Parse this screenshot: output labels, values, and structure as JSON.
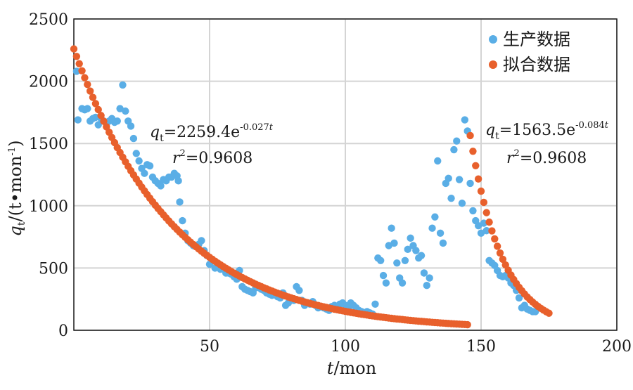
{
  "chart_data": {
    "type": "scatter",
    "xlabel_var": "t",
    "xlabel_unit": "/mon",
    "ylabel_var": "q",
    "ylabel_sub": "t",
    "ylabel_unit_pre": "/(t•mon",
    "ylabel_unit_sup": "-1",
    "ylabel_unit_post": ")",
    "xlim": [
      0,
      200
    ],
    "ylim": [
      0,
      2500
    ],
    "x_ticks": [
      50,
      100,
      150,
      200
    ],
    "y_ticks": [
      0,
      500,
      1000,
      1500,
      2000,
      2500
    ],
    "grid": true,
    "legend_position": "top-right",
    "colors": {
      "production": "#5aaee6",
      "fitted": "#e8602c",
      "grid": "#d4d4d4"
    },
    "series": [
      {
        "name": "生产数据",
        "points": [
          [
            1,
            2080
          ],
          [
            1.5,
            1690
          ],
          [
            3,
            1780
          ],
          [
            4,
            1770
          ],
          [
            5,
            1780
          ],
          [
            6,
            1680
          ],
          [
            7,
            1700
          ],
          [
            8,
            1710
          ],
          [
            9,
            1650
          ],
          [
            10,
            1700
          ],
          [
            11,
            1680
          ],
          [
            12,
            1660
          ],
          [
            13,
            1680
          ],
          [
            14,
            1700
          ],
          [
            15,
            1670
          ],
          [
            16,
            1680
          ],
          [
            17,
            1780
          ],
          [
            18,
            1970
          ],
          [
            19,
            1760
          ],
          [
            20,
            1680
          ],
          [
            21,
            1640
          ],
          [
            22,
            1540
          ],
          [
            23,
            1420
          ],
          [
            24,
            1360
          ],
          [
            25,
            1300
          ],
          [
            26,
            1260
          ],
          [
            27,
            1330
          ],
          [
            28,
            1320
          ],
          [
            29,
            1230
          ],
          [
            30,
            1200
          ],
          [
            31,
            1180
          ],
          [
            32,
            1160
          ],
          [
            33,
            1210
          ],
          [
            34,
            1200
          ],
          [
            35,
            1230
          ],
          [
            36,
            1230
          ],
          [
            37,
            1260
          ],
          [
            38,
            1240
          ],
          [
            38.5,
            1200
          ],
          [
            39,
            1030
          ],
          [
            40,
            880
          ],
          [
            41,
            780
          ],
          [
            42,
            720
          ],
          [
            43,
            700
          ],
          [
            44,
            680
          ],
          [
            45,
            680
          ],
          [
            46,
            690
          ],
          [
            47,
            720
          ],
          [
            48,
            640
          ],
          [
            49,
            600
          ],
          [
            50,
            530
          ],
          [
            51,
            560
          ],
          [
            52,
            500
          ],
          [
            53,
            520
          ],
          [
            54,
            490
          ],
          [
            55,
            510
          ],
          [
            56,
            460
          ],
          [
            57,
            460
          ],
          [
            58,
            450
          ],
          [
            59,
            430
          ],
          [
            60,
            410
          ],
          [
            61,
            480
          ],
          [
            62,
            350
          ],
          [
            63,
            330
          ],
          [
            64,
            320
          ],
          [
            65,
            310
          ],
          [
            66,
            300
          ],
          [
            67,
            340
          ],
          [
            68,
            360
          ],
          [
            69,
            330
          ],
          [
            70,
            320
          ],
          [
            71,
            300
          ],
          [
            72,
            290
          ],
          [
            73,
            280
          ],
          [
            74,
            300
          ],
          [
            75,
            270
          ],
          [
            76,
            260
          ],
          [
            77,
            300
          ],
          [
            78,
            200
          ],
          [
            79,
            220
          ],
          [
            80,
            250
          ],
          [
            81,
            240
          ],
          [
            82,
            350
          ],
          [
            83,
            320
          ],
          [
            84,
            240
          ],
          [
            85,
            200
          ],
          [
            86,
            220
          ],
          [
            87,
            210
          ],
          [
            88,
            230
          ],
          [
            89,
            200
          ],
          [
            90,
            180
          ],
          [
            91,
            190
          ],
          [
            92,
            180
          ],
          [
            93,
            170
          ],
          [
            94,
            160
          ],
          [
            95,
            190
          ],
          [
            96,
            200
          ],
          [
            97,
            180
          ],
          [
            98,
            210
          ],
          [
            99,
            220
          ],
          [
            100,
            200
          ],
          [
            101,
            180
          ],
          [
            102,
            220
          ],
          [
            103,
            200
          ],
          [
            104,
            180
          ],
          [
            105,
            160
          ],
          [
            106,
            150
          ],
          [
            107,
            140
          ],
          [
            108,
            150
          ],
          [
            109,
            140
          ],
          [
            110,
            130
          ],
          [
            111,
            210
          ],
          [
            112,
            580
          ],
          [
            113,
            560
          ],
          [
            114,
            440
          ],
          [
            115,
            380
          ],
          [
            116,
            680
          ],
          [
            117,
            820
          ],
          [
            118,
            700
          ],
          [
            119,
            540
          ],
          [
            120,
            420
          ],
          [
            121,
            380
          ],
          [
            122,
            560
          ],
          [
            123,
            650
          ],
          [
            124,
            740
          ],
          [
            125,
            680
          ],
          [
            126,
            640
          ],
          [
            127,
            580
          ],
          [
            128,
            600
          ],
          [
            129,
            460
          ],
          [
            130,
            360
          ],
          [
            131,
            420
          ],
          [
            132,
            820
          ],
          [
            133,
            910
          ],
          [
            134,
            1360
          ],
          [
            135,
            780
          ],
          [
            136,
            700
          ],
          [
            137,
            1180
          ],
          [
            138,
            1220
          ],
          [
            139,
            1060
          ],
          [
            140,
            1450
          ],
          [
            141,
            1520
          ],
          [
            142,
            1210
          ],
          [
            143,
            1020
          ],
          [
            144,
            1690
          ],
          [
            145,
            1600
          ],
          [
            146,
            1180
          ],
          [
            147,
            960
          ],
          [
            148,
            880
          ],
          [
            149,
            840
          ],
          [
            150,
            780
          ],
          [
            151,
            860
          ],
          [
            152,
            800
          ],
          [
            153,
            560
          ],
          [
            154,
            540
          ],
          [
            155,
            520
          ],
          [
            156,
            480
          ],
          [
            157,
            440
          ],
          [
            158,
            430
          ],
          [
            159,
            440
          ],
          [
            160,
            420
          ],
          [
            161,
            380
          ],
          [
            162,
            360
          ],
          [
            163,
            320
          ],
          [
            164,
            260
          ],
          [
            165,
            180
          ],
          [
            166,
            200
          ],
          [
            167,
            170
          ],
          [
            168,
            160
          ],
          [
            169,
            150
          ],
          [
            170,
            150
          ]
        ]
      },
      {
        "name": "拟合数据",
        "segments": [
          {
            "a": 2259.4,
            "b": 0.027,
            "t_start": 0,
            "t_end": 145,
            "t0": 0,
            "step": 1
          },
          {
            "a": 1563.5,
            "b": 0.084,
            "t_start": 146,
            "t_end": 175,
            "t0": 146,
            "step": 1
          }
        ]
      }
    ],
    "annotations": [
      {
        "q": "q",
        "sub": "t",
        "eq_pre": "=2259.4e",
        "exp": "-0.027",
        "exp_var": "t",
        "r_label": "r",
        "r_sup": "2",
        "r_val": "=0.9608"
      },
      {
        "q": "q",
        "sub": "t",
        "eq_pre": "=1563.5e",
        "exp": "-0.084",
        "exp_var": "t",
        "r_label": "r",
        "r_sup": "2",
        "r_val": "=0.9608"
      }
    ]
  }
}
